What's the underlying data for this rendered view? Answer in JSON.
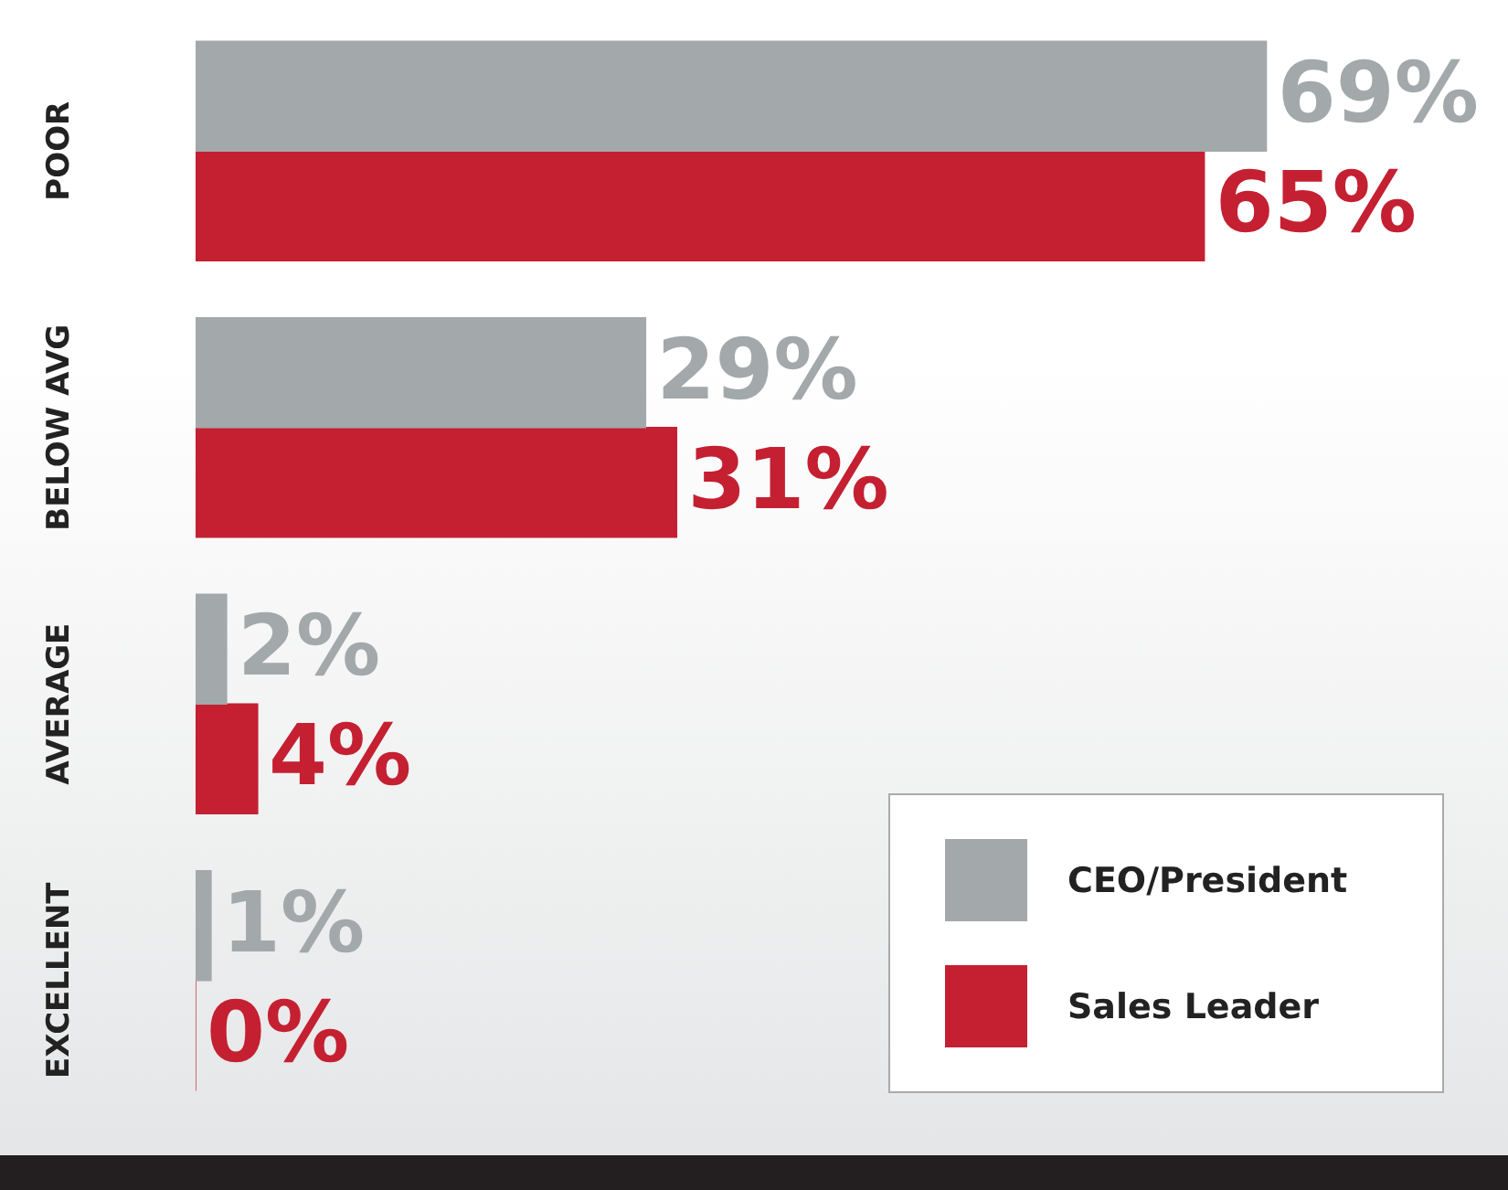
{
  "chart_data": {
    "type": "bar",
    "orientation": "horizontal",
    "categories": [
      "POOR",
      "BELOW AVG",
      "AVERAGE",
      "EXCELLENT"
    ],
    "series": [
      {
        "name": "CEO/President",
        "color": "#a3a8aa",
        "values": [
          69,
          29,
          2,
          1
        ],
        "value_labels": [
          "69%",
          "29%",
          "2%",
          "1%"
        ]
      },
      {
        "name": "Sales Leader",
        "color": "#c42032",
        "values": [
          65,
          31,
          4,
          0
        ],
        "value_labels": [
          "65%",
          "31%",
          "4%",
          "0%"
        ]
      }
    ],
    "legend": "bottom right"
  }
}
